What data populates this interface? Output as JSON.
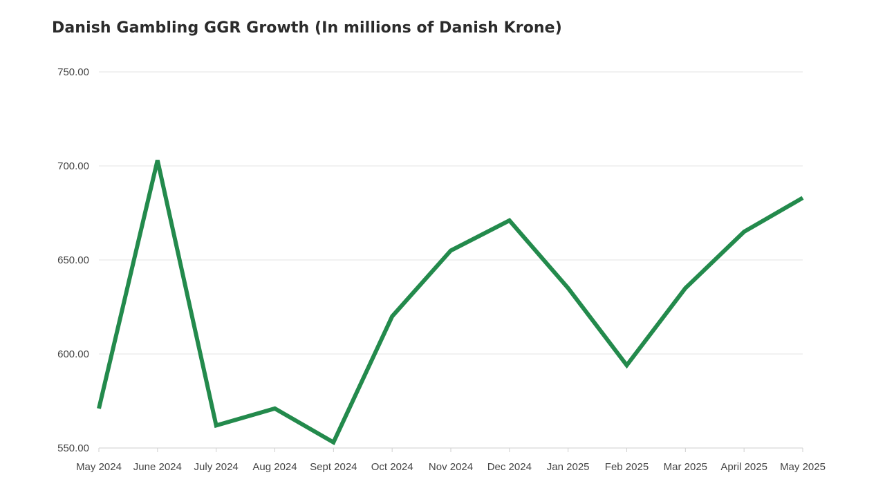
{
  "chart_data": {
    "type": "line",
    "title": "Danish Gambling GGR Growth (In millions of Danish Krone)",
    "xlabel": "",
    "ylabel": "",
    "categories": [
      "May 2024",
      "June 2024",
      "July 2024",
      "Aug 2024",
      "Sept 2024",
      "Oct 2024",
      "Nov 2024",
      "Dec 2024",
      "Jan 2025",
      "Feb 2025",
      "Mar 2025",
      "April 2025",
      "May 2025"
    ],
    "series": [
      {
        "values": [
          571,
          703,
          562,
          571,
          553,
          620,
          655,
          671,
          635,
          594,
          635,
          665,
          683
        ],
        "color": "#238a4c"
      }
    ],
    "ylim": [
      550,
      750
    ],
    "yticks": [
      550,
      600,
      650,
      700,
      750
    ],
    "ytick_labels": [
      "550.00",
      "600.00",
      "650.00",
      "700.00",
      "750.00"
    ],
    "grid": true,
    "legend": "none"
  }
}
